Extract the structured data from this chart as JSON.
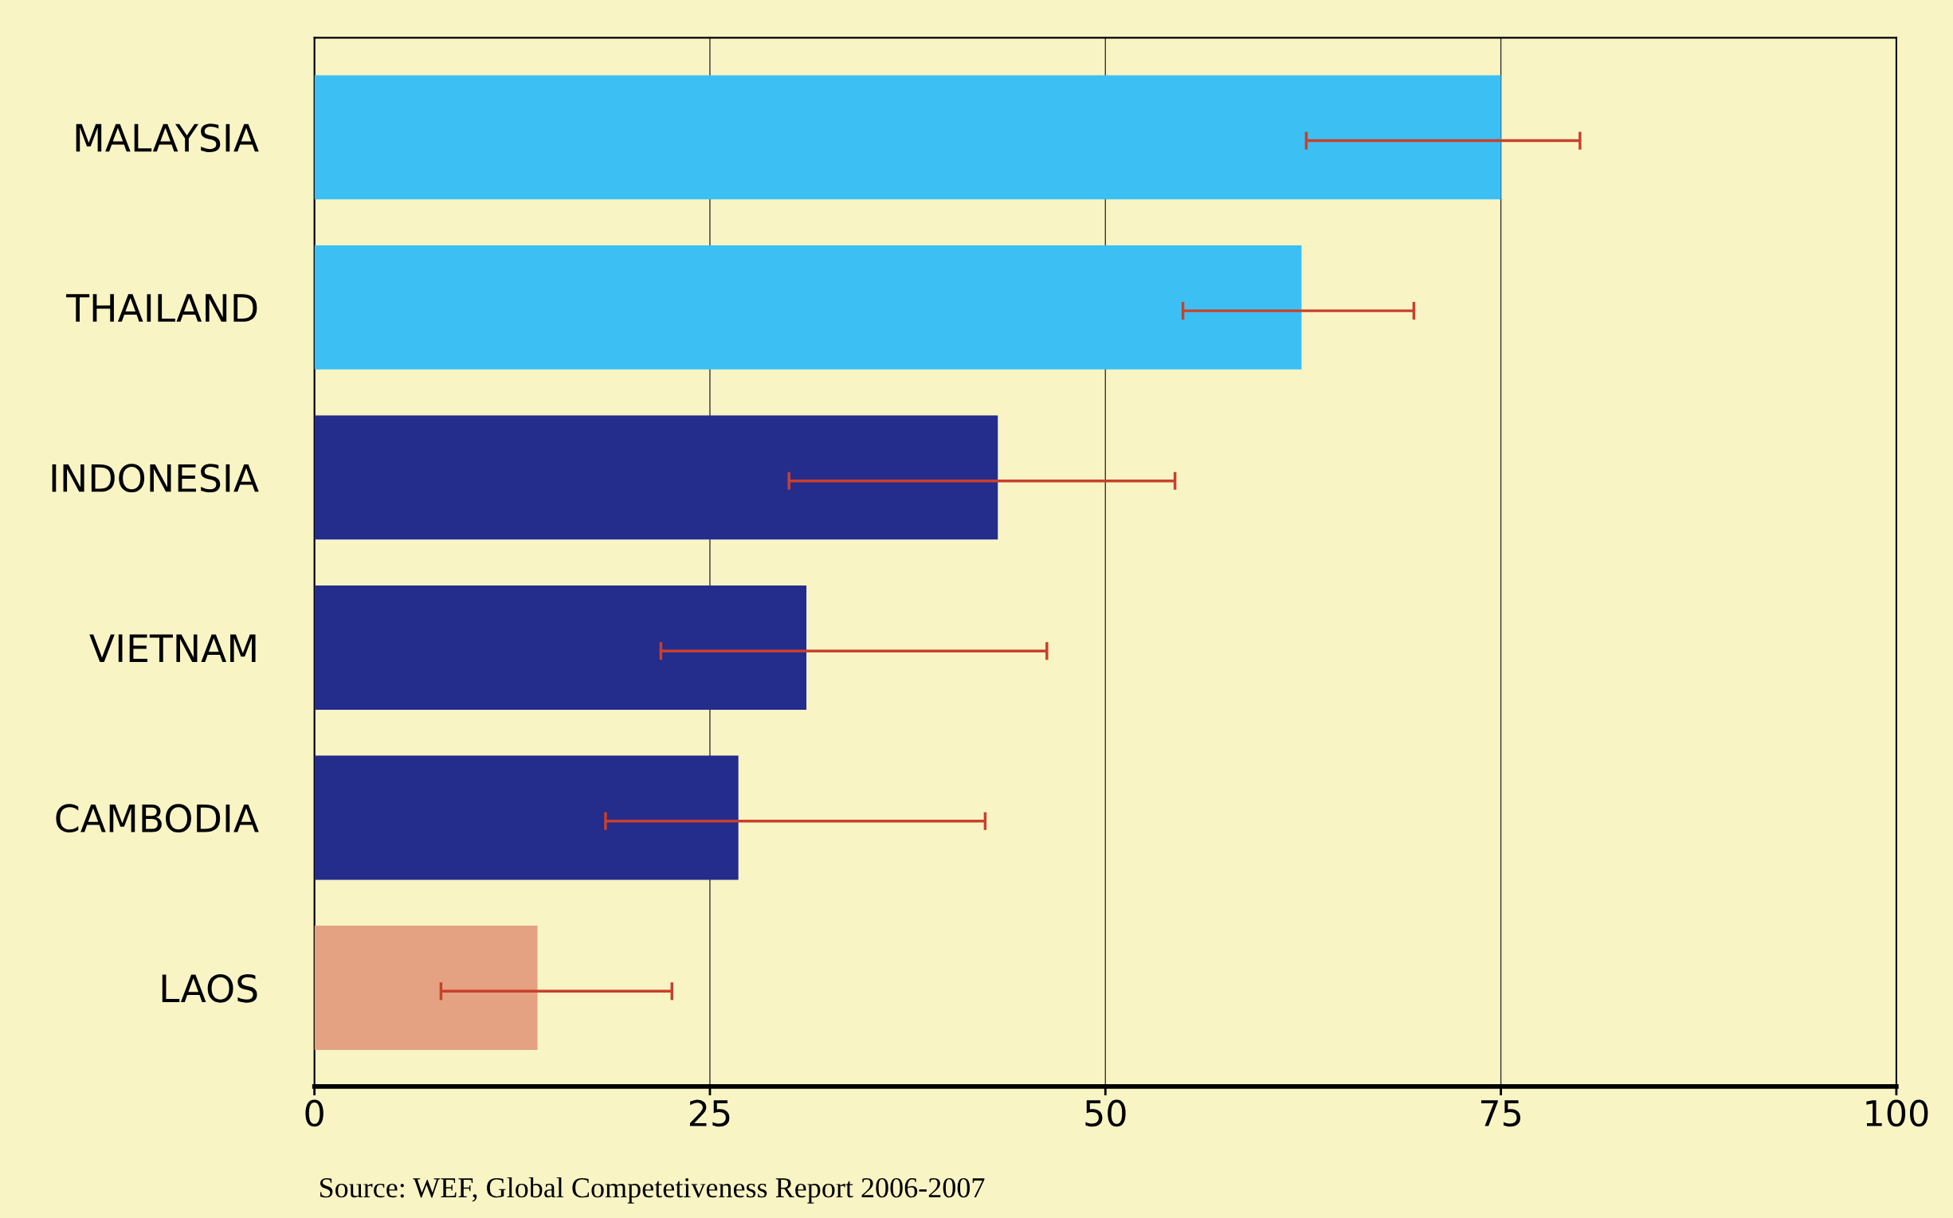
{
  "chart_data": {
    "type": "bar",
    "orientation": "horizontal",
    "categories": [
      "MALAYSIA",
      "THAILAND",
      "INDONESIA",
      "VIETNAM",
      "CAMBODIA",
      "LAOS"
    ],
    "values": [
      75,
      62.4,
      43.2,
      31.1,
      26.8,
      14.1
    ],
    "colors": [
      "#3cc0f4",
      "#3cc0f4",
      "#242c8c",
      "#242c8c",
      "#242c8c",
      "#e4a282"
    ],
    "errors": [
      [
        62.7,
        80.0
      ],
      [
        54.9,
        69.5
      ],
      [
        30.0,
        54.4
      ],
      [
        21.9,
        46.3
      ],
      [
        18.4,
        42.4
      ],
      [
        8.0,
        22.6
      ]
    ],
    "xlim": [
      0,
      100
    ],
    "xticks": [
      0,
      25,
      50,
      75,
      100
    ],
    "grid": "x",
    "annotations": [
      "Source: WEF, Global Competetiveness Report 2006-2007"
    ]
  }
}
